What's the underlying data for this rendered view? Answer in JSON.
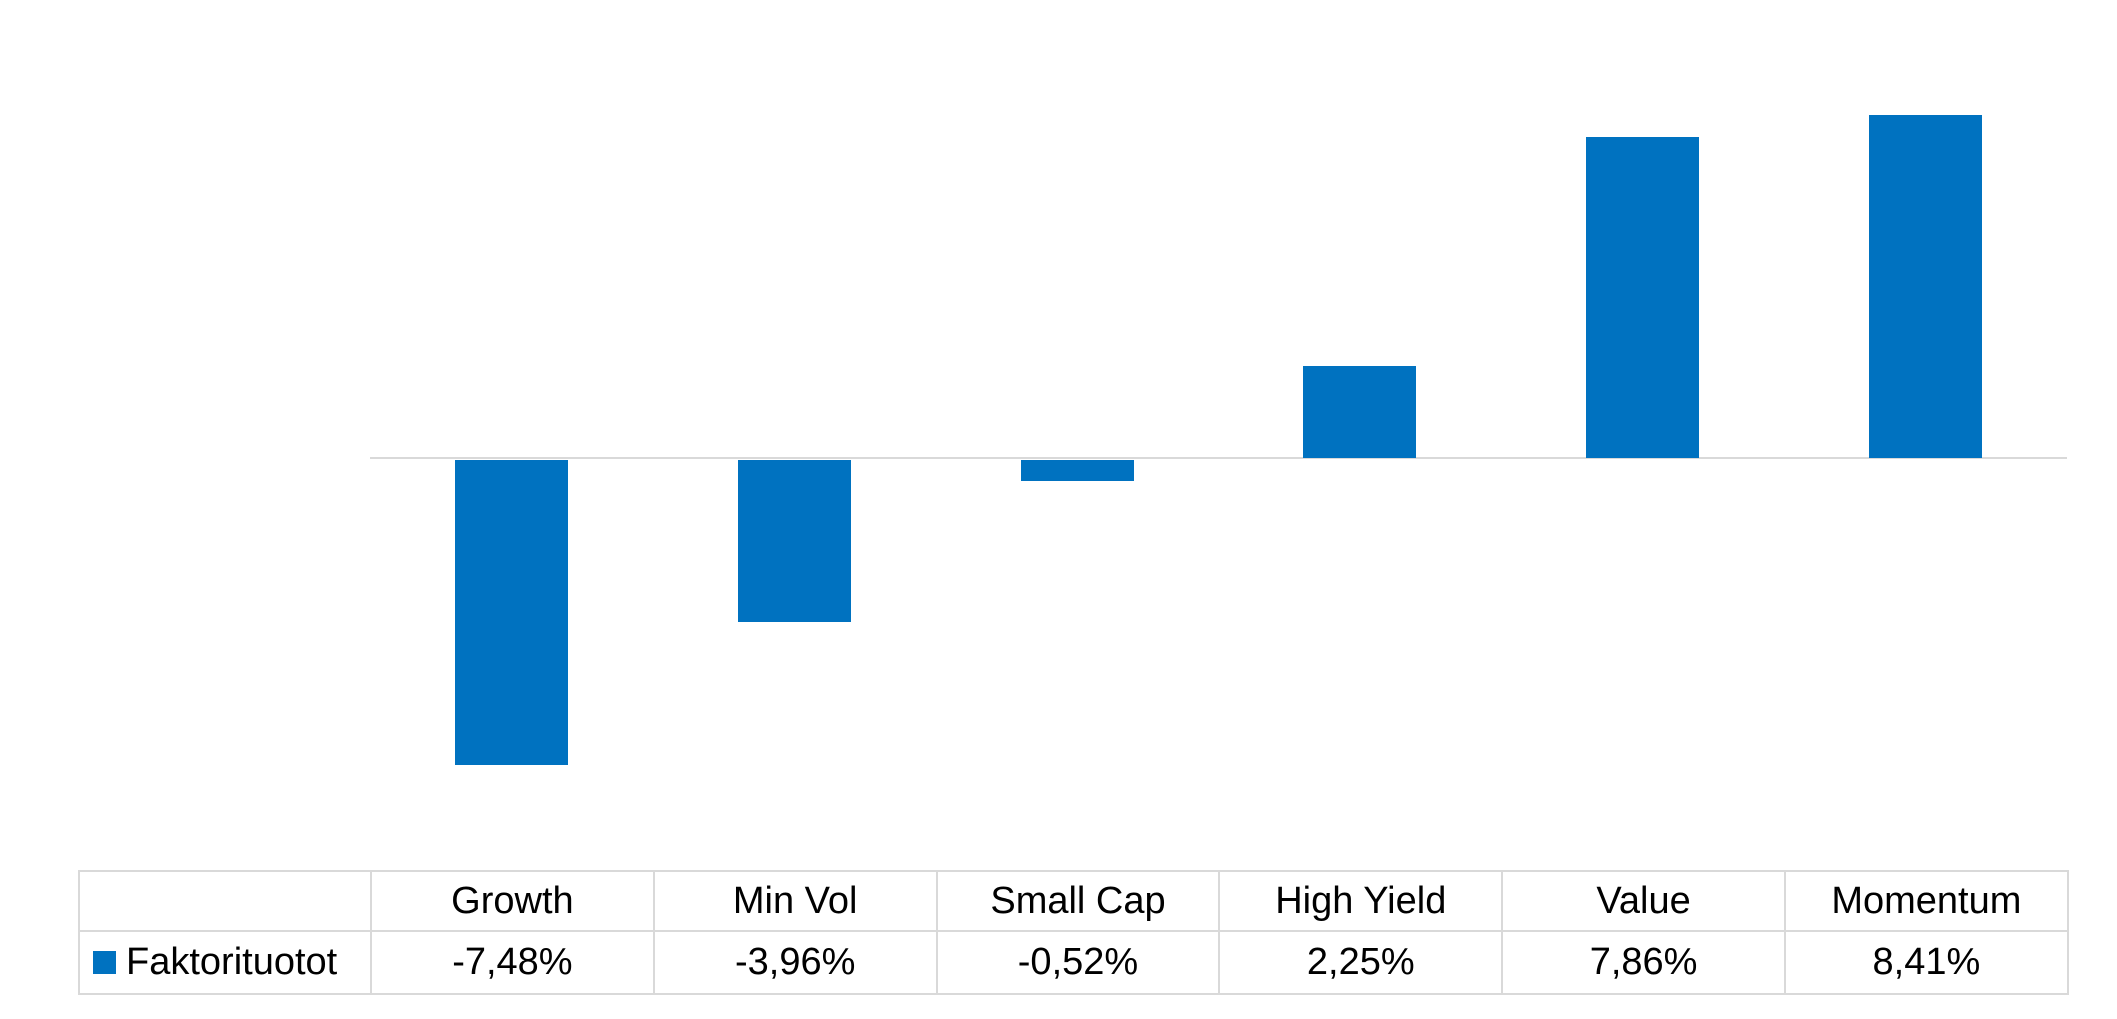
{
  "chart_data": {
    "type": "bar",
    "title": "",
    "xlabel": "",
    "ylabel": "",
    "categories": [
      "Growth",
      "Min Vol",
      "Small Cap",
      "High Yield",
      "Value",
      "Momentum"
    ],
    "series": [
      {
        "name": "Faktorituotot",
        "values": [
          -7.48,
          -3.96,
          -0.52,
          2.25,
          7.86,
          8.41
        ],
        "display_values": [
          "-7,48%",
          "-3,96%",
          "-0,52%",
          "2,25%",
          "7,86%",
          "8,41%"
        ],
        "color": "#0072C0"
      }
    ],
    "ylim": [
      -9.2,
      11.2
    ],
    "grid": false,
    "axis_line_color": "#D9D9D9",
    "table_border_color": "#D9D9D9",
    "legend_position": "data-table-left",
    "data_table": true
  }
}
